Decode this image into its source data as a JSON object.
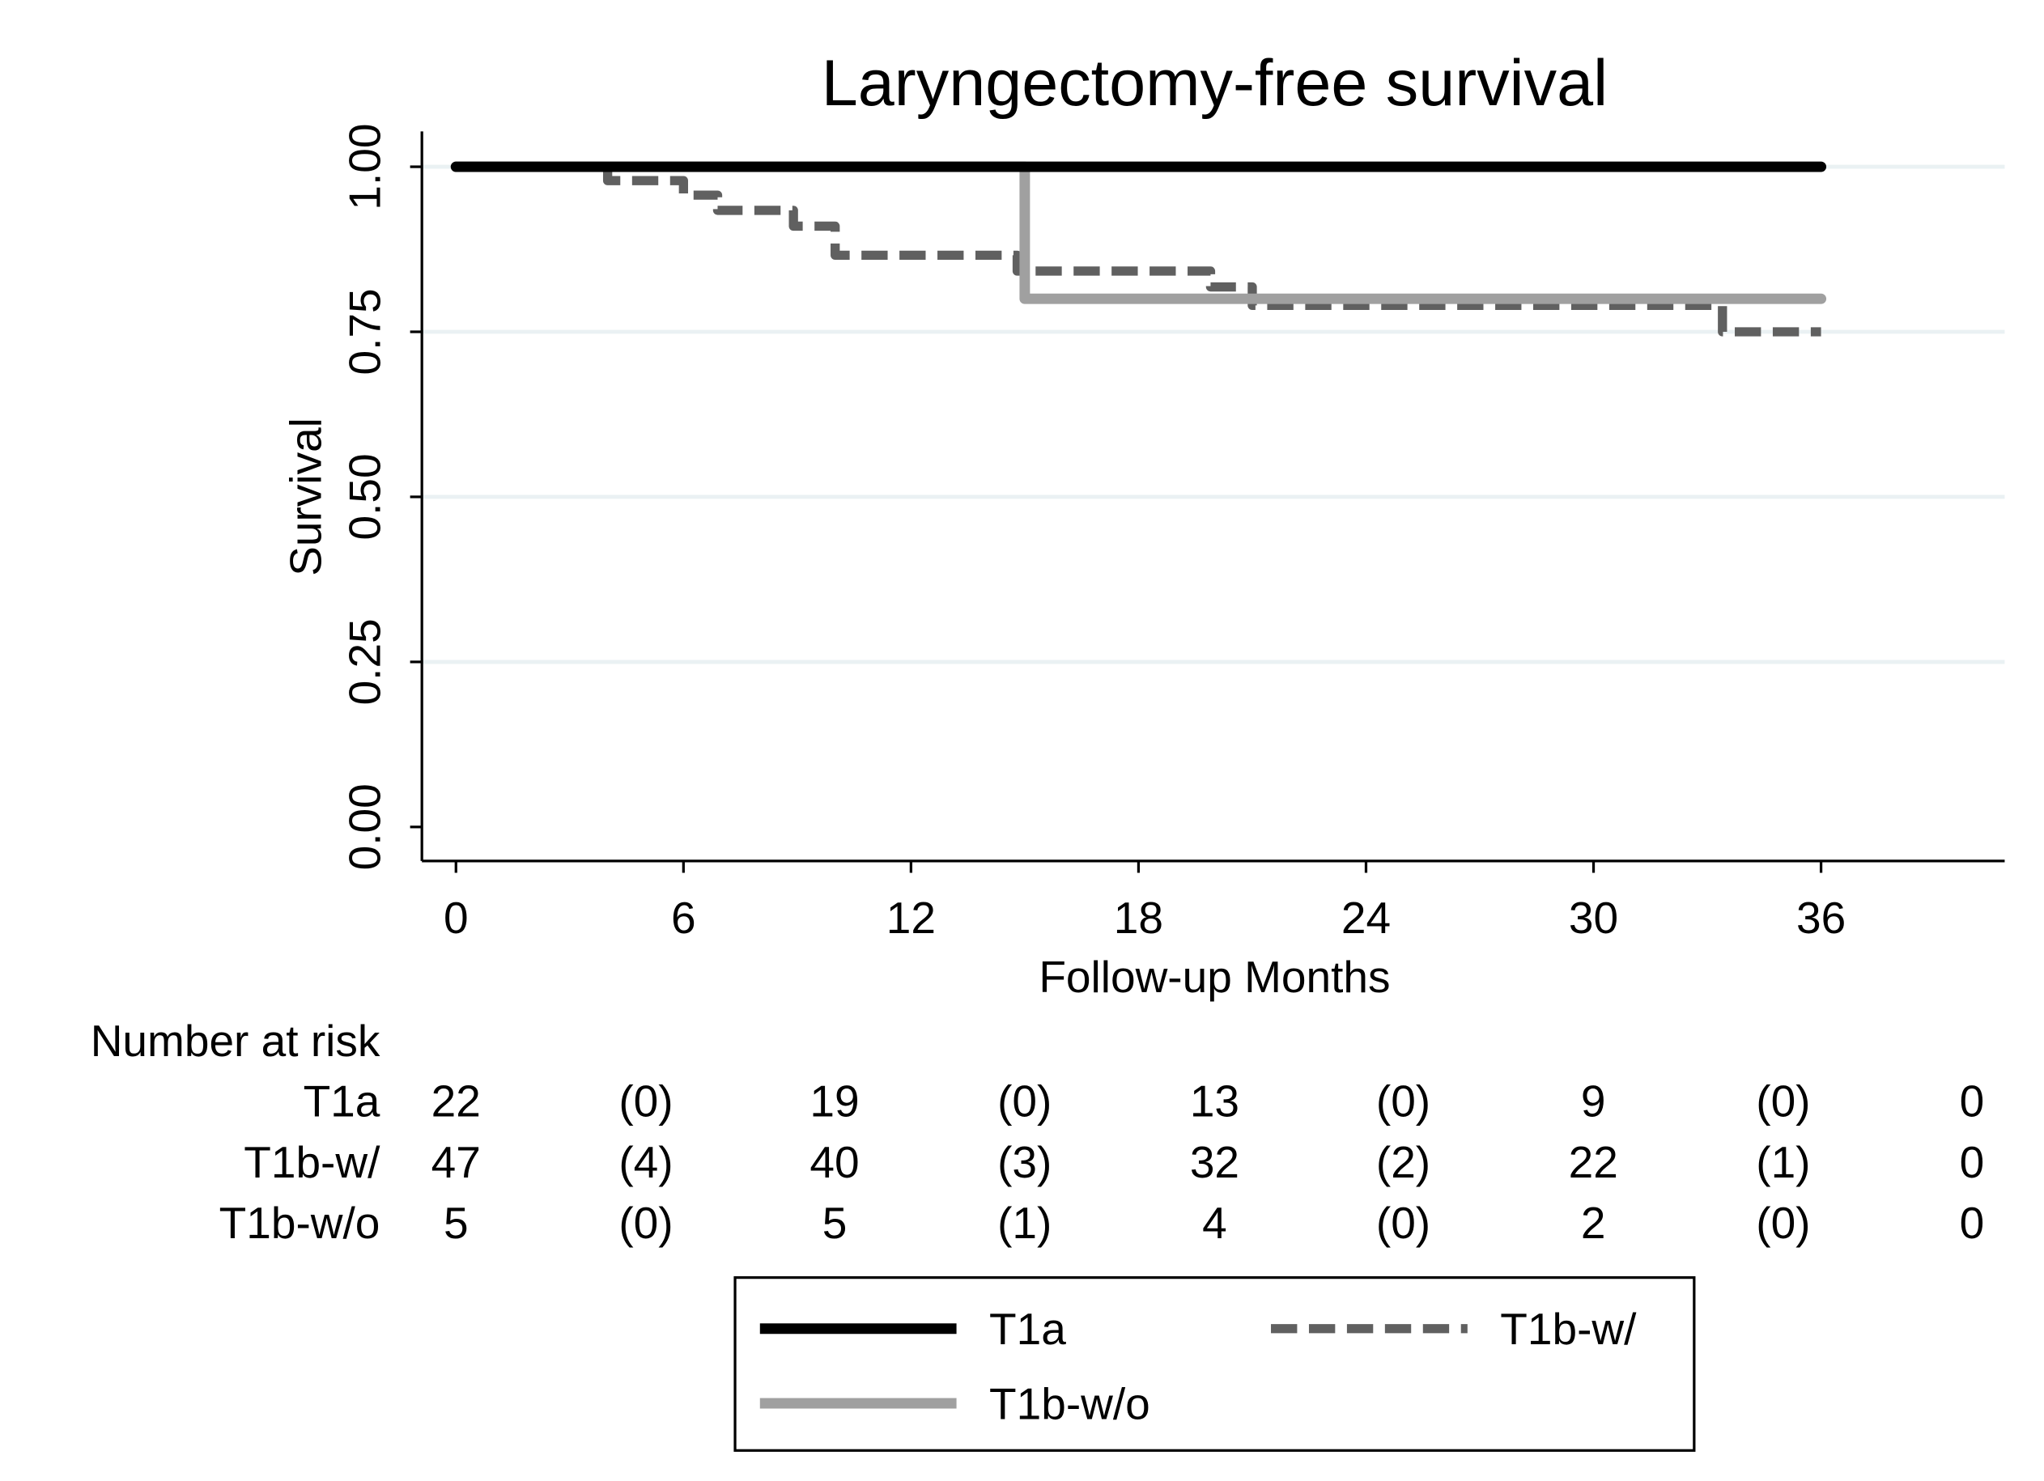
{
  "chart_data": {
    "type": "line",
    "step": true,
    "title": "Laryngectomy-free survival",
    "xlabel": "Follow-up Months",
    "ylabel": "Survival",
    "xlim": [
      0,
      40
    ],
    "ylim": [
      0,
      1
    ],
    "xticks": [
      0,
      6,
      12,
      18,
      24,
      30,
      36
    ],
    "yticks": [
      "0.00",
      "0.25",
      "0.50",
      "0.75",
      "1.00"
    ],
    "grid": true,
    "series": [
      {
        "name": "T1a",
        "color": "#000000",
        "dash": "solid",
        "x": [
          0,
          36
        ],
        "y": [
          1.0,
          1.0
        ]
      },
      {
        "name": "T1b-w/",
        "color": "#606060",
        "dash": "dashed",
        "x": [
          0,
          4.0,
          6.0,
          6.9,
          8.9,
          10.0,
          14.8,
          19.9,
          21.0,
          33.4,
          36
        ],
        "y": [
          1.0,
          0.979,
          0.957,
          0.934,
          0.91,
          0.866,
          0.842,
          0.818,
          0.79,
          0.75,
          0.75
        ]
      },
      {
        "name": "T1b-w/o",
        "color": "#a0a0a0",
        "dash": "solid",
        "x": [
          0,
          15,
          36
        ],
        "y": [
          1.0,
          0.8,
          0.8
        ]
      }
    ],
    "risk_table": {
      "title": "Number at risk",
      "rows": [
        {
          "label": "T1a",
          "values": [
            "22",
            "(0)",
            "19",
            "(0)",
            "13",
            "(0)",
            "9",
            "(0)",
            "0"
          ]
        },
        {
          "label": "T1b-w/",
          "values": [
            "47",
            "(4)",
            "40",
            "(3)",
            "32",
            "(2)",
            "22",
            "(1)",
            "0"
          ]
        },
        {
          "label": "T1b-w/o",
          "values": [
            "5",
            "(0)",
            "5",
            "(1)",
            "4",
            "(0)",
            "2",
            "(0)",
            "0"
          ]
        }
      ]
    },
    "legend": {
      "placement": "bottom",
      "entries": [
        "T1a",
        "T1b-w/",
        "T1b-w/o"
      ]
    }
  }
}
